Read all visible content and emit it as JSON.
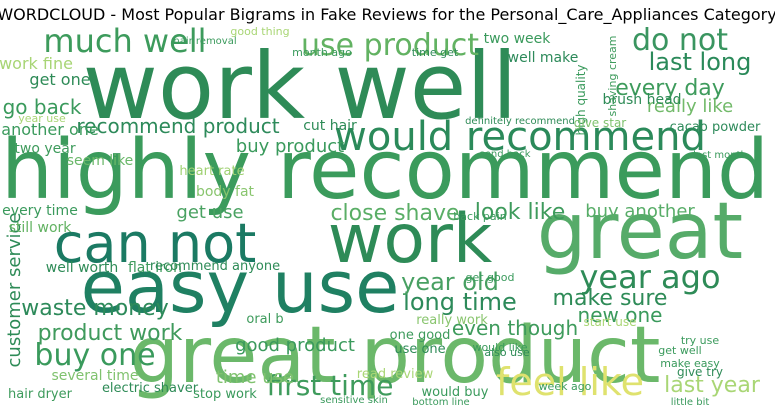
{
  "chart_data": {
    "type": "wordcloud",
    "title": "WORDCLOUD - Most Popular Bigrams in Fake Reviews for the Personal_Care_Appliances Category",
    "words": [
      "work well",
      "highly recommend",
      "great product",
      "easy use",
      "great",
      "work",
      "can not",
      "would recommend",
      "much well",
      "use product",
      "do not",
      "year ago",
      "feel like",
      "first time",
      "buy one",
      "waste money",
      "product work",
      "last long",
      "every day",
      "go back",
      "recommend product",
      "buy product",
      "close shave",
      "look like",
      "buy another",
      "get use",
      "long time",
      "year old",
      "make sure",
      "new one",
      "even though",
      "time use",
      "last year",
      "really like",
      "customer service",
      "work fine",
      "get one",
      "well make",
      "two week",
      "brush head",
      "high quality",
      "give star",
      "cacao powder",
      "another one",
      "two year",
      "seem like",
      "heart rate",
      "body fat",
      "cut hair",
      "every time",
      "still work",
      "well worth",
      "flat iron",
      "recommend anyone",
      "several time",
      "good product",
      "electric shaver",
      "hair dryer",
      "stop work",
      "really work",
      "use one",
      "one good",
      "read review",
      "would buy",
      "good thing",
      "month ago",
      "time get",
      "year use",
      "back pain",
      "get good",
      "also use",
      "oral b",
      "would like",
      "try use",
      "start use",
      "make easy",
      "give try",
      "get well",
      "week ago",
      "sensitive skin",
      "bottom line",
      "little bit",
      "shaving cream",
      "hair removal",
      "definitely recommend",
      "send back",
      "last month"
    ]
  }
}
